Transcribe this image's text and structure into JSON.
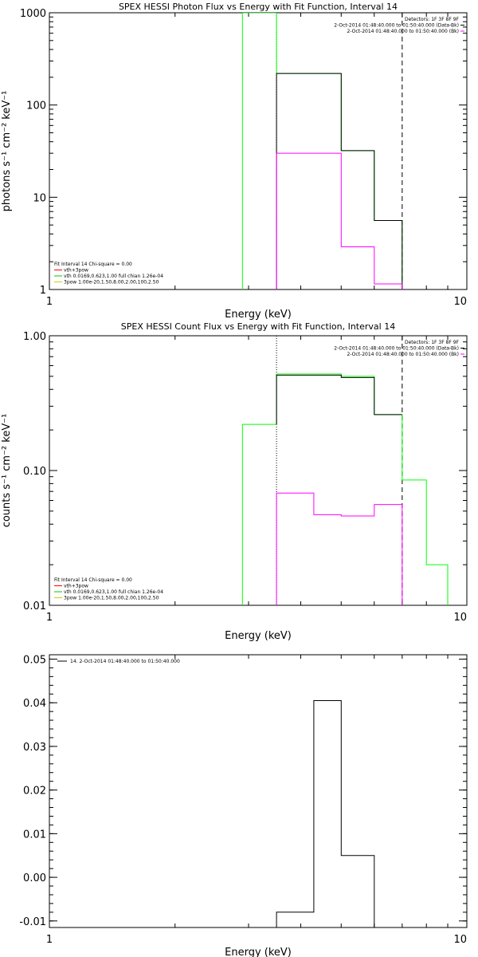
{
  "chart_data": [
    {
      "type": "line",
      "title": "SPEX HESSI Photon Flux vs Energy with Fit Function, Interval 14",
      "xlabel": "Energy (keV)",
      "ylabel": "photons s⁻¹ cm⁻² keV⁻¹",
      "xscale": "log",
      "yscale": "log",
      "xlim": [
        1,
        10
      ],
      "ylim": [
        1,
        1000
      ],
      "xticks": [
        {
          "v": 1,
          "label": "1"
        },
        {
          "v": 10,
          "label": "10"
        }
      ],
      "yticks": [
        {
          "v": 1,
          "label": "1"
        },
        {
          "v": 10,
          "label": "10"
        },
        {
          "v": 100,
          "label": "100"
        },
        {
          "v": 1000,
          "label": "1000"
        }
      ],
      "vlines": [
        {
          "x": 3.5,
          "style": "dotted",
          "color": "#000000"
        },
        {
          "x": 7.0,
          "style": "dashed",
          "color": "#000000"
        }
      ],
      "legend_top": {
        "placement": "top-right",
        "lines": [
          {
            "text": "Detectors: 1F 3F 8F 9F",
            "color": ""
          },
          {
            "text": "2-Oct-2014 01:48:40.000 to 01:50:40.000 (Data-Bk)",
            "color": "#000000"
          },
          {
            "text": "2-Oct-2014 01:48:40.000 to 01:50:40.000 (Bk)",
            "color": "#ff00ff"
          }
        ]
      },
      "legend_fit": {
        "placement": "bottom-left",
        "lines": [
          {
            "text": "Fit Interval 14   Chi-square = 0.00",
            "color": ""
          },
          {
            "text": "vth+3pow",
            "color": "#ff0000"
          },
          {
            "text": "vth 0.0169,0.623,1.00  full chian 1.26e-04",
            "color": "#00cc00"
          },
          {
            "text": "3pow 1.00e-20,1.50,8.00,2.00,100,2.50",
            "color": "#cccc00"
          }
        ]
      },
      "series": [
        {
          "color": "#00ff00",
          "x": [
            2.9,
            2.9,
            3.5,
            3.5,
            5.0,
            5.0,
            6.0,
            6.0,
            7.0,
            7.0
          ],
          "y": [
            1,
            1000,
            1000,
            220,
            220,
            32,
            32,
            5.6,
            5.6,
            1
          ]
        },
        {
          "color": "#000000",
          "x": [
            3.5,
            3.5,
            5.0,
            5.0,
            6.0,
            6.0,
            7.0,
            7.0
          ],
          "y": [
            1,
            220,
            220,
            32,
            32,
            5.6,
            5.6,
            1
          ]
        },
        {
          "color": "#ff00ff",
          "x": [
            3.5,
            3.5,
            5.0,
            5.0,
            6.0,
            6.0,
            7.0,
            7.0
          ],
          "y": [
            1,
            30,
            30,
            2.9,
            2.9,
            1.15,
            1.15,
            1
          ]
        }
      ]
    },
    {
      "type": "line",
      "title": "SPEX HESSI Count Flux vs Energy with Fit Function, Interval 14",
      "xlabel": "Energy (keV)",
      "ylabel": "counts s⁻¹ cm⁻² keV⁻¹",
      "xscale": "log",
      "yscale": "log",
      "xlim": [
        1,
        10
      ],
      "ylim": [
        0.01,
        1
      ],
      "xticks": [
        {
          "v": 1,
          "label": "1"
        },
        {
          "v": 10,
          "label": "10"
        }
      ],
      "yticks": [
        {
          "v": 0.01,
          "label": "0.01"
        },
        {
          "v": 0.1,
          "label": "0.10"
        },
        {
          "v": 1,
          "label": "1.00"
        }
      ],
      "vlines": [
        {
          "x": 3.5,
          "style": "dotted",
          "color": "#000000"
        },
        {
          "x": 7.0,
          "style": "dashed",
          "color": "#000000"
        }
      ],
      "legend_top": {
        "placement": "top-right",
        "lines": [
          {
            "text": "Detectors: 1F 3F 8F 9F",
            "color": ""
          },
          {
            "text": "2-Oct-2014 01:48:40.000 to 01:50:40.000 (Data-Bk)",
            "color": "#000000"
          },
          {
            "text": "2-Oct-2014 01:48:40.000 to 01:50:40.000 (Bk)",
            "color": "#ff00ff"
          }
        ]
      },
      "legend_fit": {
        "placement": "bottom-left",
        "lines": [
          {
            "text": "Fit Interval 14   Chi-square = 0.00",
            "color": ""
          },
          {
            "text": "vth+3pow",
            "color": "#ff0000"
          },
          {
            "text": "vth 0.0169,0.623,1.00  full chian 1.26e-04",
            "color": "#00cc00"
          },
          {
            "text": "3pow 1.00e-20,1.50,8.00,2.00,100,2.50",
            "color": "#cccc00"
          }
        ]
      },
      "series": [
        {
          "color": "#00ff00",
          "x": [
            2.9,
            2.9,
            3.5,
            3.5,
            5.0,
            5.0,
            6.0,
            6.0,
            7.0,
            7.0,
            8.0,
            8.0,
            9.0,
            9.0
          ],
          "y": [
            0.01,
            0.22,
            0.22,
            0.52,
            0.52,
            0.5,
            0.5,
            0.26,
            0.26,
            0.085,
            0.085,
            0.02,
            0.02,
            0.01
          ]
        },
        {
          "color": "#000000",
          "x": [
            3.5,
            3.5,
            5.0,
            5.0,
            6.0,
            6.0,
            7.0
          ],
          "y": [
            0.22,
            0.51,
            0.51,
            0.49,
            0.49,
            0.26,
            0.26
          ]
        },
        {
          "color": "#ff00ff",
          "x": [
            3.5,
            3.5,
            4.3,
            4.3,
            5.0,
            5.0,
            6.0,
            6.0,
            7.0,
            7.0
          ],
          "y": [
            0.01,
            0.068,
            0.068,
            0.047,
            0.047,
            0.046,
            0.046,
            0.056,
            0.056,
            0.01
          ]
        }
      ]
    },
    {
      "type": "line",
      "title": "",
      "xlabel": "Energy (keV)",
      "ylabel": "",
      "xscale": "log",
      "yscale": "linear",
      "xlim": [
        1,
        10
      ],
      "ylim": [
        -0.0115,
        0.051
      ],
      "xticks": [
        {
          "v": 1,
          "label": "1"
        },
        {
          "v": 10,
          "label": "10"
        }
      ],
      "yticks": [
        {
          "v": -0.01,
          "label": "-0.01"
        },
        {
          "v": 0.0,
          "label": "0.00"
        },
        {
          "v": 0.01,
          "label": "0.01"
        },
        {
          "v": 0.02,
          "label": "0.02"
        },
        {
          "v": 0.03,
          "label": "0.03"
        },
        {
          "v": 0.04,
          "label": "0.04"
        },
        {
          "v": 0.05,
          "label": "0.05"
        }
      ],
      "vlines": [],
      "legend_top": {
        "placement": "top-left",
        "lines": [
          {
            "text": "14.  2-Oct-2014 01:48:40.000 to 01:50:40.000",
            "color": "#000000"
          }
        ]
      },
      "legend_fit": {
        "placement": "",
        "lines": []
      },
      "series": [
        {
          "color": "#000000",
          "x": [
            3.5,
            3.5,
            4.3,
            4.3,
            5.0,
            5.0,
            6.0,
            6.0,
            7.0,
            7.0
          ],
          "y": [
            -0.0115,
            -0.008,
            -0.008,
            0.0405,
            0.0405,
            0.005,
            0.005,
            -0.0115,
            -0.0115,
            -0.0115
          ]
        }
      ]
    }
  ]
}
